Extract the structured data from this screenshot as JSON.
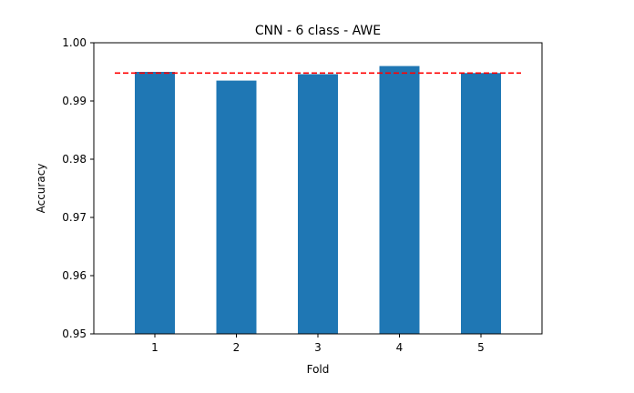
{
  "chart_data": {
    "type": "bar",
    "title": "CNN - 6 class - AWE",
    "xlabel": "Fold",
    "ylabel": "Accuracy",
    "categories": [
      "1",
      "2",
      "3",
      "4",
      "5"
    ],
    "values": [
      0.995,
      0.9935,
      0.9946,
      0.996,
      0.9948
    ],
    "ylim": [
      0.95,
      1.0
    ],
    "yticks": [
      "0.95",
      "0.96",
      "0.97",
      "0.98",
      "0.99",
      "1.00"
    ],
    "mean_line": 0.9948,
    "grid": false,
    "colors": {
      "bar": "#1f77b4",
      "mean_line": "#ff0000"
    }
  }
}
